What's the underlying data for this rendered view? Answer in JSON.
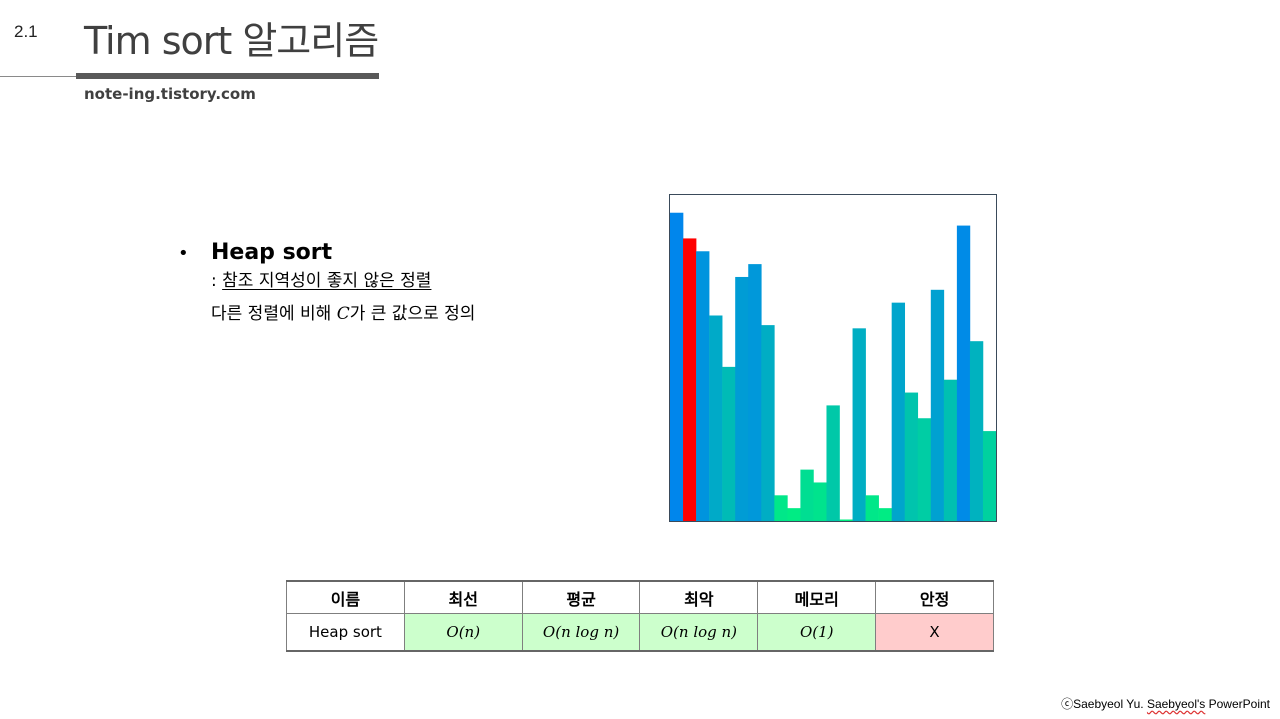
{
  "section_number": "2.1",
  "title": "Tim sort 알고리즘",
  "site": "note-ing.tistory.com",
  "bullet": {
    "title": "Heap sort",
    "line1_prefix": ": ",
    "line1_text": "참조 지역성이 좋지 않은 정렬",
    "line2_pre": "다른 정렬에 비해 ",
    "line2_math": "C",
    "line2_post": "가 큰 값으로 정의"
  },
  "chart_data": {
    "type": "bar",
    "ylim": [
      0,
      100
    ],
    "values": [
      96,
      88,
      84,
      64,
      48,
      76,
      80,
      61,
      8,
      4,
      16,
      12,
      36,
      0,
      60,
      8,
      4,
      68,
      40,
      32,
      72,
      44,
      92,
      56,
      28
    ],
    "highlight_index": 1,
    "colors": {
      "high": "#0082f0",
      "low": "#00f080",
      "highlight": "#ff0000"
    }
  },
  "table": {
    "headers": [
      "이름",
      "최선",
      "평균",
      "최악",
      "메모리",
      "안정"
    ],
    "row": [
      "Heap sort",
      "O(n)",
      "O(n log n)",
      "O(n log n)",
      "O(1)",
      "X"
    ],
    "colors": {
      "good": "#ccffcc",
      "bad": "#ffcccc"
    }
  },
  "credit": {
    "prefix": "ⓒSaebyeol Yu. ",
    "name": "Saebyeol's",
    "suffix": " PowerPoint"
  }
}
